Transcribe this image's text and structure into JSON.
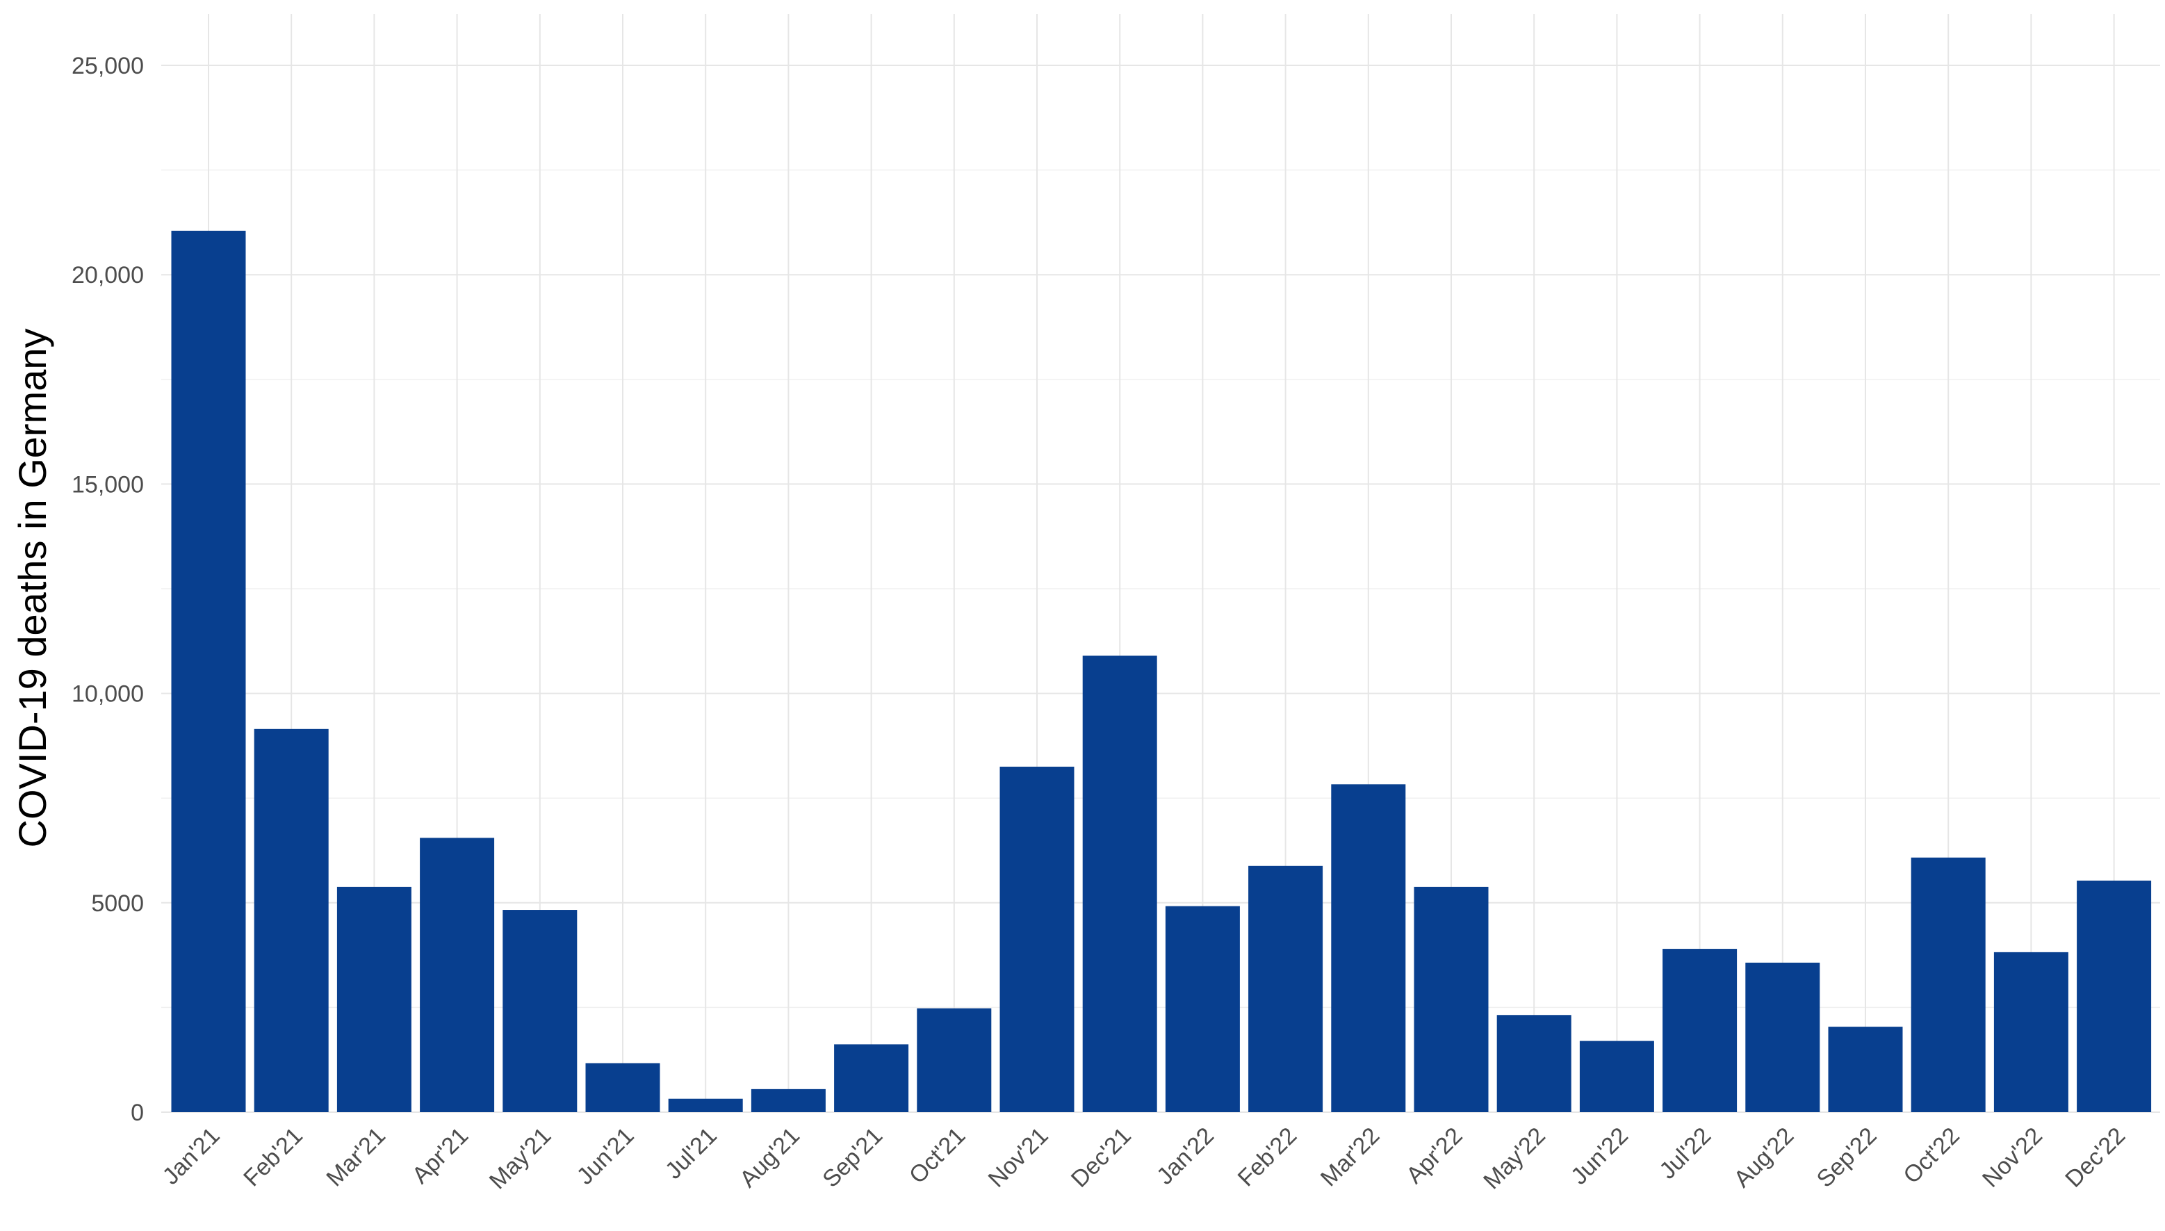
{
  "chart_data": {
    "type": "bar",
    "title": "",
    "xlabel": "",
    "ylabel": "COVID-19 deaths in Germany",
    "categories": [
      "Jan'21",
      "Feb'21",
      "Mar'21",
      "Apr'21",
      "May'21",
      "Jun'21",
      "Jul'21",
      "Aug'21",
      "Sep'21",
      "Oct'21",
      "Nov'21",
      "Dec'21",
      "Jan'22",
      "Feb'22",
      "Mar'22",
      "Apr'22",
      "May'22",
      "Jun'22",
      "Jul'22",
      "Aug'22",
      "Sep'22",
      "Oct'22",
      "Nov'22",
      "Dec'22"
    ],
    "values": [
      21050,
      9150,
      5380,
      6550,
      4830,
      1170,
      320,
      550,
      1620,
      2480,
      8250,
      10900,
      4920,
      5880,
      7830,
      5380,
      2320,
      1700,
      3900,
      3570,
      2040,
      6080,
      3820,
      5530
    ],
    "ylim": [
      0,
      25000
    ],
    "yticks": [
      0,
      5000,
      10000,
      15000,
      20000,
      25000
    ],
    "ytick_labels": [
      "0",
      "5000",
      "10,000",
      "15,000",
      "20,000",
      "25,000"
    ],
    "grid": true,
    "bar_color": "#083f8f"
  }
}
